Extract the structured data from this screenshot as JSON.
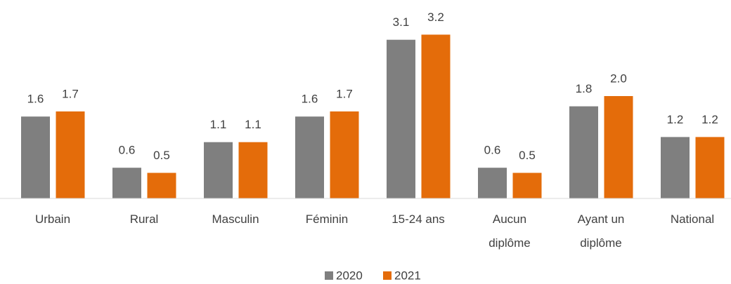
{
  "chart_data": {
    "type": "bar",
    "categories": [
      "Urbain",
      "Rural",
      "Masculin",
      "Féminin",
      "15-24 ans",
      "Aucun diplôme",
      "Ayant un diplôme",
      "National"
    ],
    "series": [
      {
        "name": "2020",
        "color": "#7f7f7f",
        "values": [
          1.6,
          0.6,
          1.1,
          1.6,
          3.1,
          0.6,
          1.8,
          1.2
        ],
        "value_labels": [
          "1.6",
          "0.6",
          "1.1",
          "1.6",
          "3.1",
          "0.6",
          "1.8",
          "1.2"
        ]
      },
      {
        "name": "2021",
        "color": "#e46c0a",
        "values": [
          1.7,
          0.5,
          1.1,
          1.7,
          3.2,
          0.5,
          2.0,
          1.2
        ],
        "value_labels": [
          "1.7",
          "0.5",
          "1.1",
          "1.7",
          "3.2",
          "0.5",
          "2.0",
          "1.2"
        ]
      }
    ],
    "ylim": [
      0,
      3.5
    ],
    "legend": "bottom"
  }
}
